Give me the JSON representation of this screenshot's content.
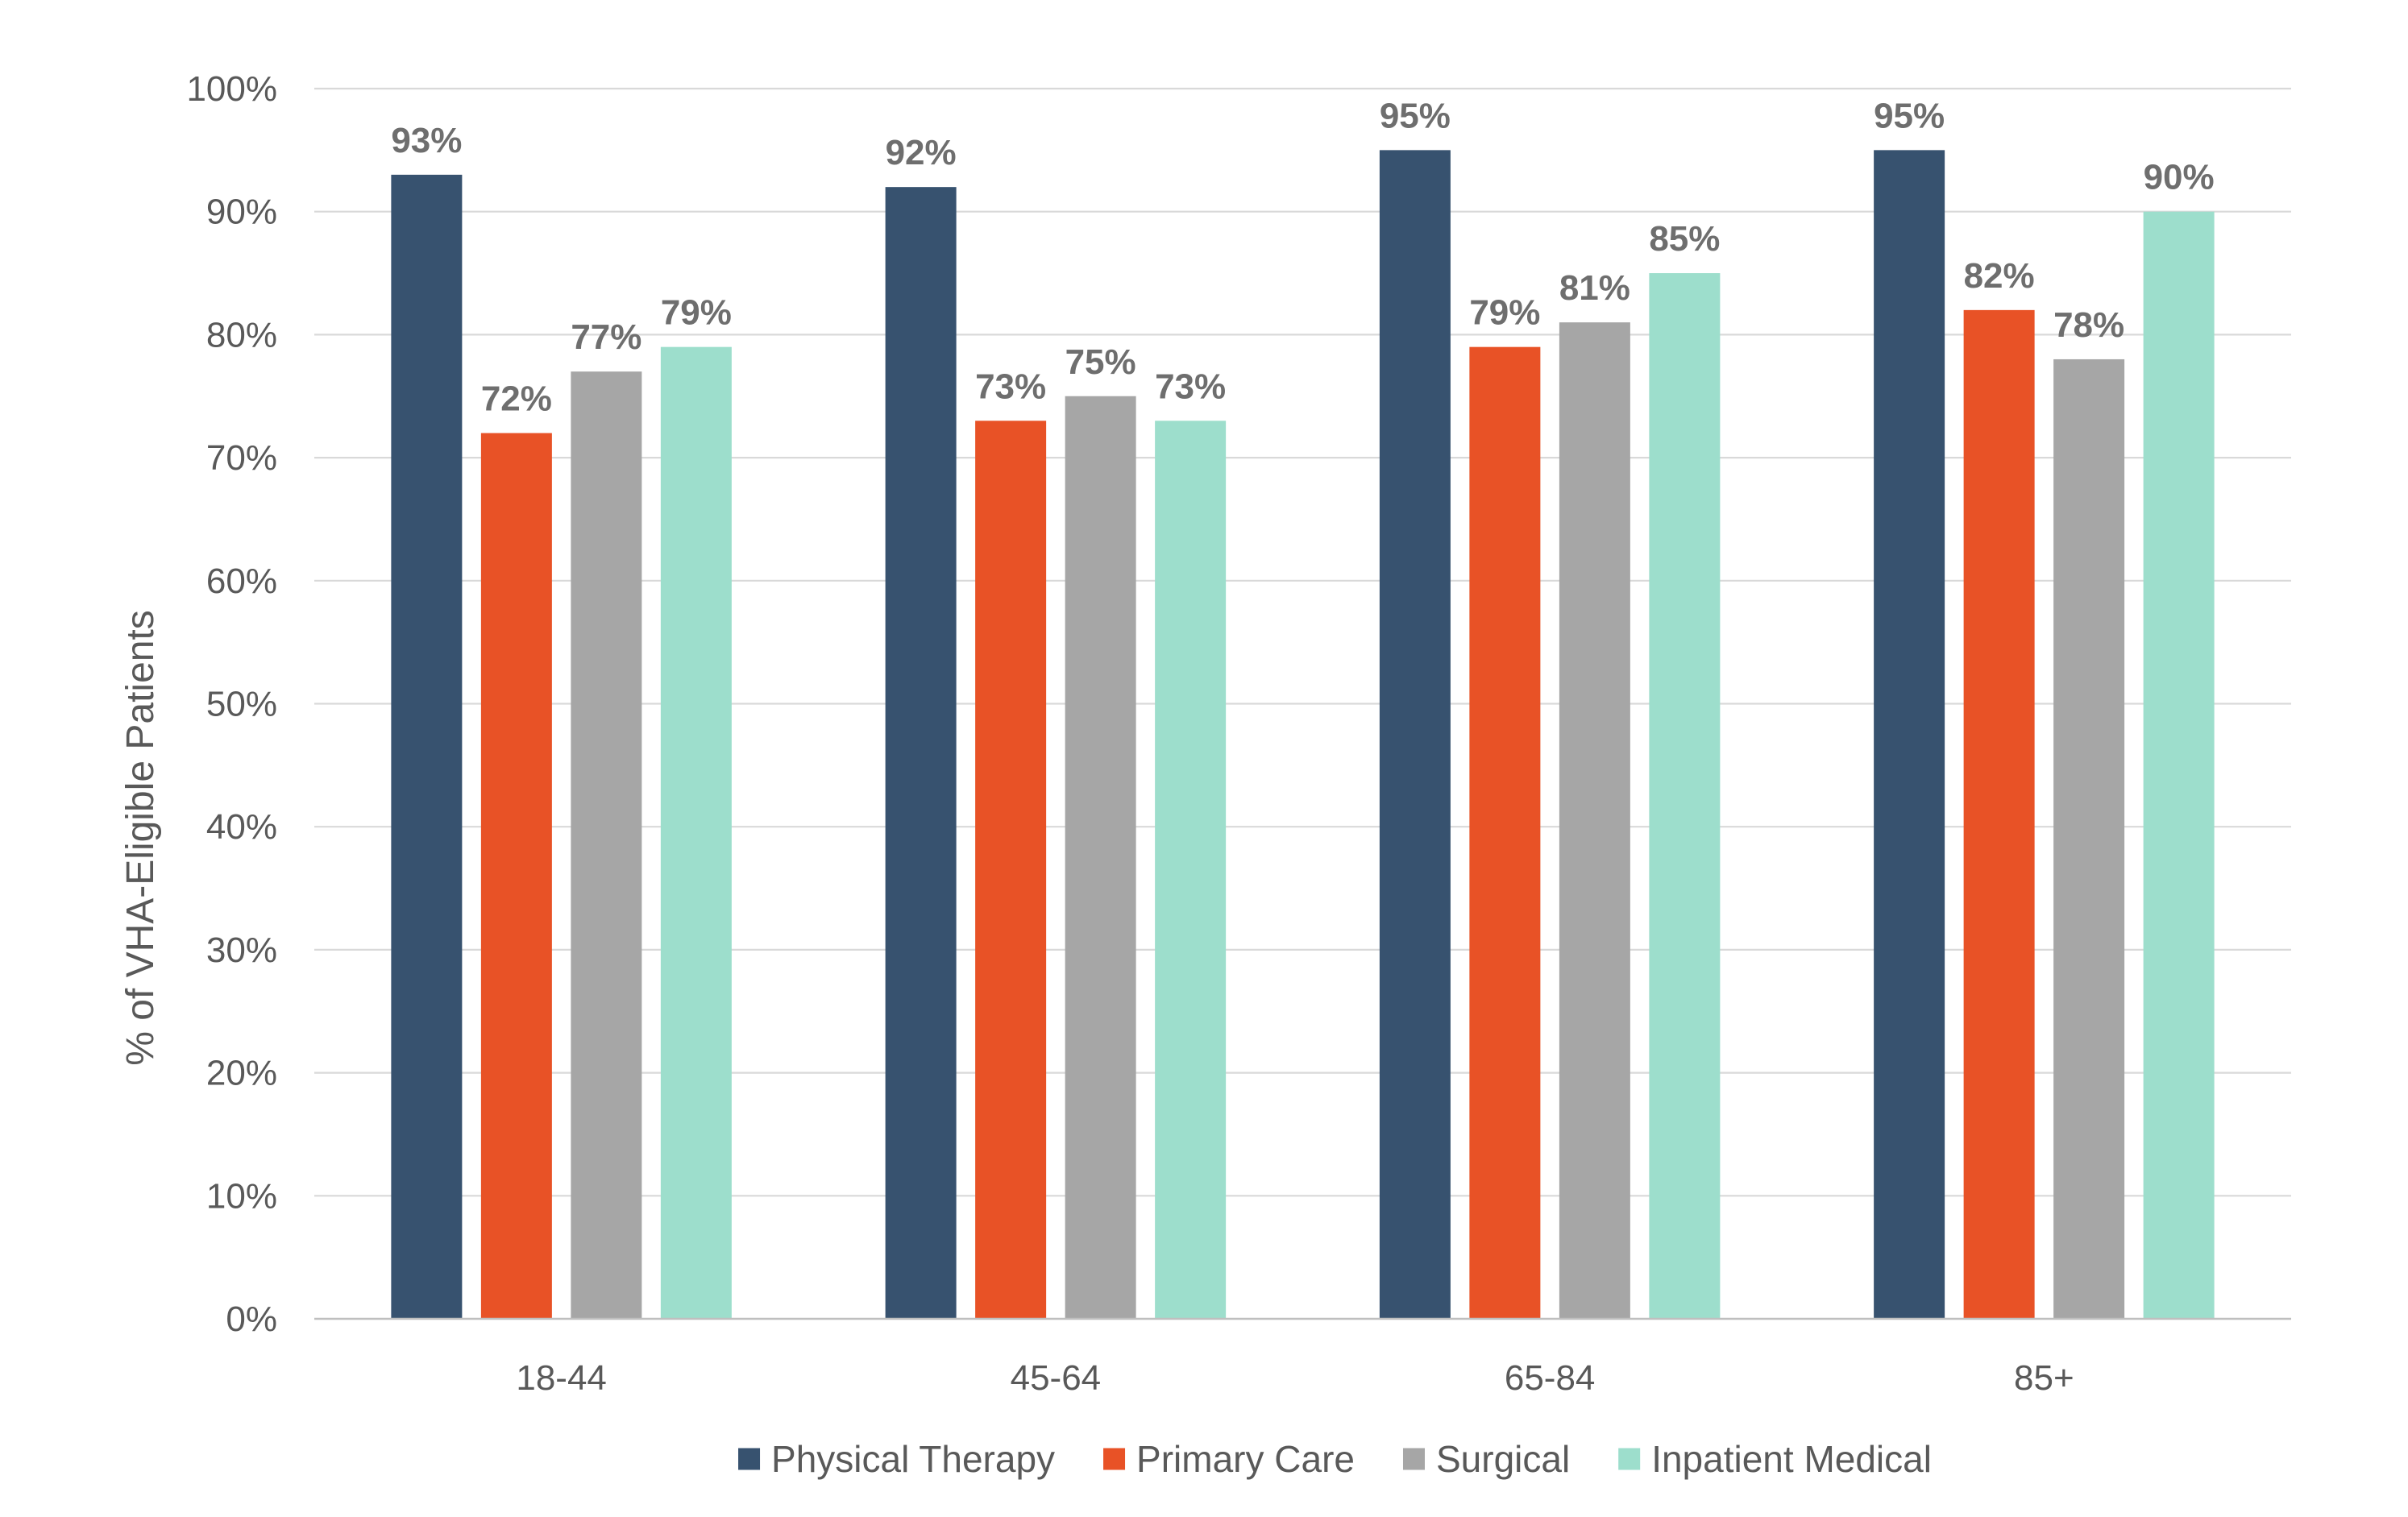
{
  "chart_data": {
    "type": "bar",
    "categories": [
      "18-44",
      "45-64",
      "65-84",
      "85+"
    ],
    "series": [
      {
        "name": "Physical Therapy",
        "color": "#37526f",
        "values": [
          93,
          92,
          95,
          95
        ]
      },
      {
        "name": "Primary Care",
        "color": "#e85226",
        "values": [
          72,
          73,
          79,
          82
        ]
      },
      {
        "name": "Surgical",
        "color": "#a6a6a6",
        "values": [
          77,
          75,
          81,
          78
        ]
      },
      {
        "name": "Inpatient Medical",
        "color": "#9ddecc",
        "values": [
          79,
          73,
          85,
          90
        ]
      }
    ],
    "data_labels": [
      [
        "93%",
        "92%",
        "95%",
        "95%"
      ],
      [
        "72%",
        "73%",
        "79%",
        "82%"
      ],
      [
        "77%",
        "75%",
        "81%",
        "78%"
      ],
      [
        "79%",
        "73%",
        "85%",
        "90%"
      ]
    ],
    "ylabel": "% of VHA-Eligible Patients",
    "xlabel": "",
    "ylim": [
      0,
      100
    ],
    "y_ticks": [
      0,
      10,
      20,
      30,
      40,
      50,
      60,
      70,
      80,
      90,
      100
    ],
    "y_tick_labels": [
      "0%",
      "10%",
      "20%",
      "30%",
      "40%",
      "50%",
      "60%",
      "70%",
      "80%",
      "90%",
      "100%"
    ],
    "grid": true,
    "legend_position": "bottom"
  }
}
